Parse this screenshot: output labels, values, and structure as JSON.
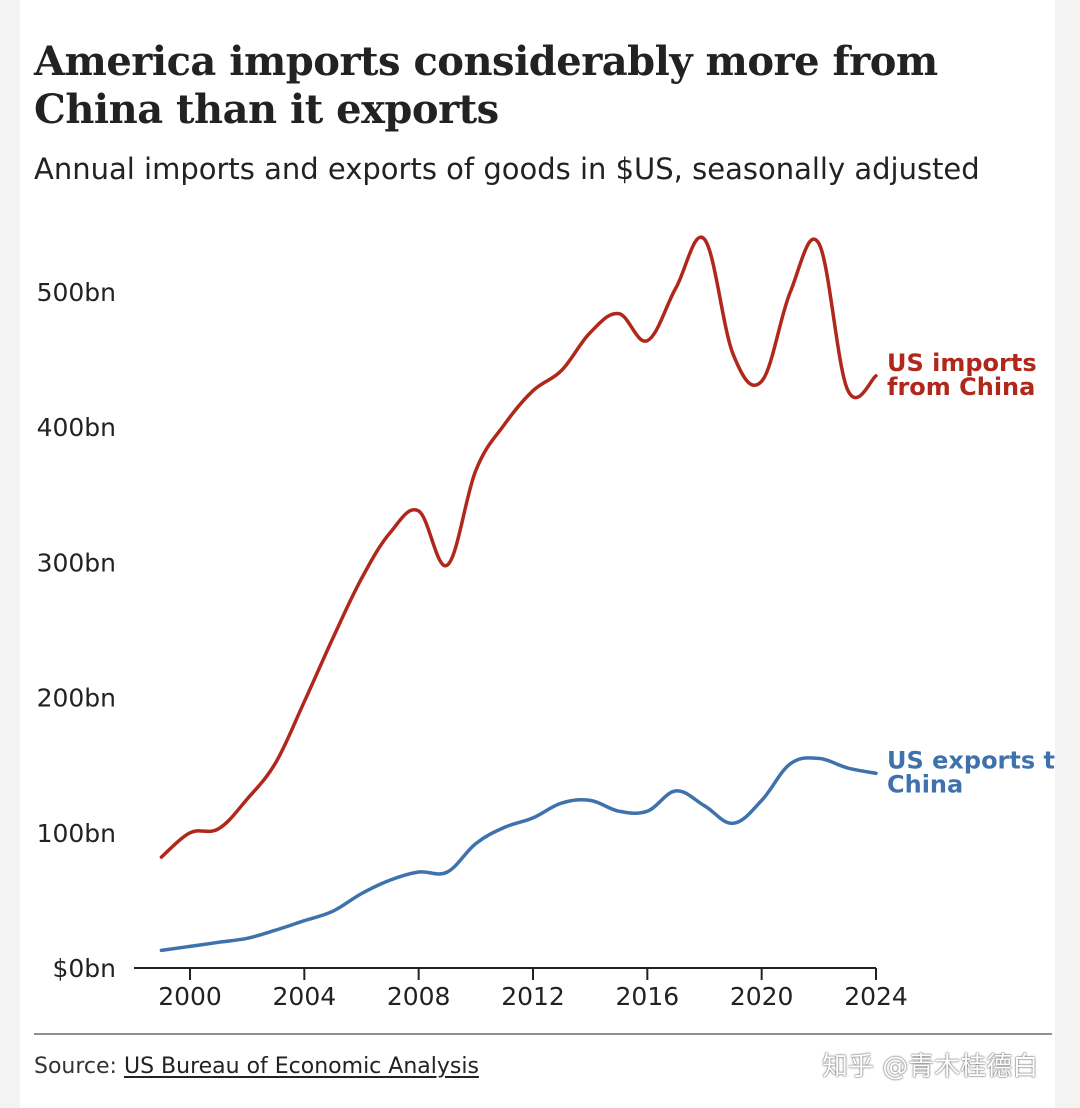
{
  "title": "America imports considerably more from China than it exports",
  "subtitle": "Annual imports and exports of goods in $US, seasonally adjusted",
  "source": {
    "prefix": "Source: ",
    "link_text": "US Bureau of Economic Analysis"
  },
  "watermark": "知乎 @青木桂德白",
  "colors": {
    "imports": "#b0271b",
    "exports": "#3f72ad",
    "axis": "#222222",
    "text": "#222222"
  },
  "chart_data": {
    "type": "line",
    "title": "America imports considerably more from China than it exports",
    "subtitle": "Annual imports and exports of goods in $US, seasonally adjusted",
    "xlabel": "",
    "ylabel": "",
    "xlim": [
      1998.5,
      2024
    ],
    "ylim": [
      0,
      560
    ],
    "grid": false,
    "x_ticks": [
      2000,
      2004,
      2008,
      2012,
      2016,
      2020,
      2024
    ],
    "x_tick_labels": [
      "2000",
      "2004",
      "2008",
      "2012",
      "2016",
      "2020",
      "2024"
    ],
    "y_ticks": [
      0,
      100,
      200,
      300,
      400,
      500
    ],
    "y_tick_labels": [
      "$0bn",
      "100bn",
      "200bn",
      "300bn",
      "400bn",
      "500bn"
    ],
    "legend": "inline labels at line ends",
    "series": [
      {
        "name": "US imports from China",
        "label_lines": [
          "US imports",
          "from China"
        ],
        "color": "#b0271b",
        "x": [
          1999,
          2000,
          2001,
          2002,
          2003,
          2004,
          2005,
          2006,
          2007,
          2008,
          2009,
          2010,
          2011,
          2012,
          2013,
          2014,
          2015,
          2016,
          2017,
          2018,
          2019,
          2020,
          2021,
          2022,
          2023,
          2024
        ],
        "values": [
          82,
          100,
          103,
          125,
          152,
          197,
          244,
          288,
          322,
          338,
          298,
          368,
          402,
          427,
          442,
          470,
          484,
          464,
          503,
          539,
          454,
          434,
          500,
          536,
          428,
          438
        ]
      },
      {
        "name": "US exports to China",
        "label_lines": [
          "US exports t",
          "China"
        ],
        "color": "#3f72ad",
        "x": [
          1999,
          2000,
          2001,
          2002,
          2003,
          2004,
          2005,
          2006,
          2007,
          2008,
          2009,
          2010,
          2011,
          2012,
          2013,
          2014,
          2015,
          2016,
          2017,
          2018,
          2019,
          2020,
          2021,
          2022,
          2023,
          2024
        ],
        "values": [
          13,
          16,
          19,
          22,
          28,
          35,
          42,
          55,
          65,
          71,
          71,
          92,
          104,
          111,
          122,
          124,
          116,
          116,
          131,
          120,
          107,
          124,
          151,
          155,
          148,
          144
        ]
      }
    ]
  }
}
